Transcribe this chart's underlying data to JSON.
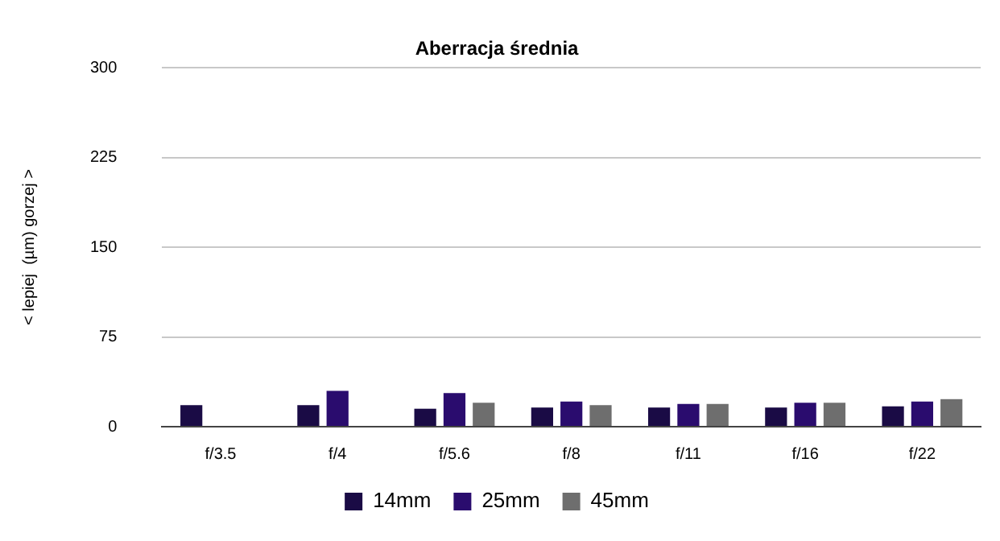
{
  "chart_data": {
    "type": "bar",
    "title": "Aberracja średnia",
    "ylabel": "< lepiej  (µm) gorzej >",
    "categories": [
      "f/3.5",
      "f/4",
      "f/5.6",
      "f/8",
      "f/11",
      "f/16",
      "f/22"
    ],
    "series": [
      {
        "name": "14mm",
        "color": "#1a0b45",
        "values": [
          18,
          18,
          15,
          16,
          16,
          16,
          17
        ]
      },
      {
        "name": "25mm",
        "color": "#2a0c6e",
        "values": [
          null,
          30,
          28,
          21,
          19,
          20,
          21
        ]
      },
      {
        "name": "45mm",
        "color": "#6e6e6e",
        "values": [
          null,
          null,
          20,
          18,
          19,
          20,
          23
        ]
      }
    ],
    "ylim": [
      0,
      300
    ],
    "yticks": [
      0,
      75,
      150,
      225,
      300
    ],
    "grid": "y",
    "legend": "bottom"
  }
}
